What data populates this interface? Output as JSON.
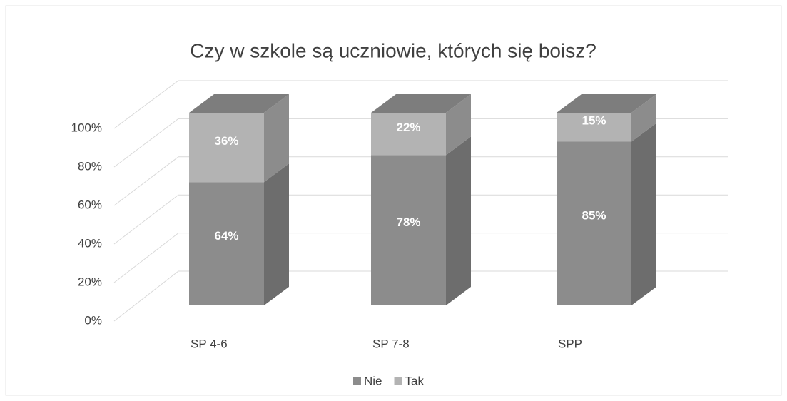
{
  "chart_data": {
    "type": "bar3d_stacked",
    "title": "Czy w szkole są uczniowie, których się boisz?",
    "categories": [
      "SP 4-6",
      "SP 7-8",
      "SPP"
    ],
    "series": [
      {
        "name": "Nie",
        "color": "#8c8c8c",
        "values": [
          64,
          78,
          85
        ],
        "value_labels": [
          "64%",
          "78%",
          "85%"
        ]
      },
      {
        "name": "Tak",
        "color": "#b3b3b3",
        "values": [
          36,
          22,
          15
        ],
        "value_labels": [
          "36%",
          "22%",
          "15%"
        ]
      }
    ],
    "ylim": [
      0,
      100
    ],
    "yticks": [
      {
        "value": 0,
        "label": "0%"
      },
      {
        "value": 20,
        "label": "20%"
      },
      {
        "value": 40,
        "label": "40%"
      },
      {
        "value": 60,
        "label": "60%"
      },
      {
        "value": 80,
        "label": "80%"
      },
      {
        "value": 100,
        "label": "100%"
      }
    ],
    "grid": true,
    "legend": "bottom"
  }
}
